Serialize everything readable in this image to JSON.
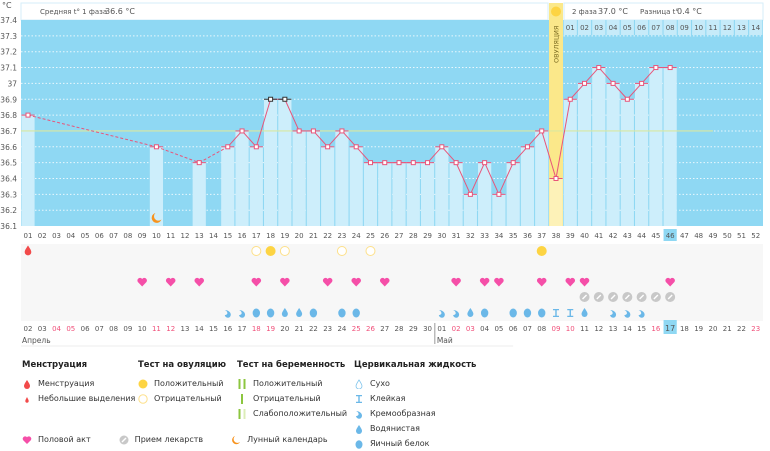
{
  "unit": "°C",
  "header": {
    "phase1_label": "Средняя t° 1 фаза",
    "phase1_value": "36.6 °C",
    "phase2_label": "2 фаза",
    "phase2_value": "37.0 °C",
    "diff_label": "Разница t°",
    "diff_value": "0.4 °C",
    "ovulation_label": "ОВУЛЯЦИЯ"
  },
  "colors": {
    "bg": "#8fd8f3",
    "bar": "#cdeefb",
    "line": "#e8557a",
    "cover": "#d9e8a0",
    "ovulation": "#fbe88a",
    "today": "#8fd8f3",
    "weekend": "#f0507a"
  },
  "y_ticks": [
    "37.4",
    "37.3",
    "37.2",
    "37.1",
    "37",
    "36.9",
    "36.8",
    "36.7",
    "36.6",
    "36.5",
    "36.4",
    "36.3",
    "36.2",
    "36.1"
  ],
  "cover_line": 36.7,
  "ovulation_day": 38,
  "today_day": 46,
  "temps": [
    36.8,
    null,
    null,
    null,
    null,
    null,
    null,
    null,
    null,
    36.6,
    null,
    null,
    36.5,
    null,
    36.6,
    36.7,
    36.6,
    36.9,
    36.9,
    36.7,
    36.7,
    36.6,
    36.7,
    36.6,
    36.5,
    36.5,
    36.5,
    36.5,
    36.5,
    36.6,
    36.5,
    36.3,
    36.5,
    36.3,
    36.5,
    36.6,
    36.7,
    36.4,
    36.9,
    37.0,
    37.1,
    37.0,
    36.9,
    37.0,
    37.1,
    37.1,
    null,
    null,
    null,
    null,
    null,
    null
  ],
  "highlight_points": [
    18,
    19
  ],
  "phase2_days": [
    "01",
    "02",
    "03",
    "04",
    "05",
    "06",
    "07",
    "08",
    "09",
    "10",
    "11",
    "12",
    "13",
    "14"
  ],
  "dates": [
    "02",
    "03",
    "04",
    "05",
    "06",
    "07",
    "08",
    "09",
    "10",
    "11",
    "12",
    "13",
    "14",
    "15",
    "16",
    "17",
    "18",
    "19",
    "20",
    "21",
    "22",
    "23",
    "24",
    "25",
    "26",
    "27",
    "28",
    "29",
    "30",
    "01",
    "02",
    "03",
    "04",
    "05",
    "06",
    "07",
    "08",
    "09",
    "10",
    "11",
    "12",
    "13",
    "14",
    "15",
    "16",
    "17",
    "18",
    "19",
    "20",
    "21",
    "22",
    "23"
  ],
  "weekend_days": [
    3,
    4,
    10,
    11,
    17,
    18,
    24,
    25,
    31,
    32,
    38,
    39,
    45,
    52
  ],
  "months": [
    {
      "label": "Апрель",
      "day": 1
    },
    {
      "label": "Май",
      "day": 30
    }
  ],
  "marks": {
    "menstruation": [
      1
    ],
    "ovulation_positive": [
      18,
      37
    ],
    "ovulation_negative": [
      17,
      19,
      23,
      25
    ],
    "intercourse": [
      9,
      11,
      13,
      17,
      19,
      22,
      24,
      26,
      31,
      33,
      34,
      37,
      39,
      40,
      46
    ],
    "medication": [
      40,
      41,
      42,
      43,
      44,
      45,
      46
    ],
    "moon": [
      10
    ],
    "cervical": {
      "15": "creamy",
      "16": "creamy",
      "17": "eggwhite",
      "18": "eggwhite",
      "19": "watery",
      "20": "watery",
      "21": "eggwhite",
      "23": "eggwhite",
      "24": "eggwhite",
      "30": "creamy",
      "31": "creamy",
      "32": "watery",
      "33": "eggwhite",
      "35": "eggwhite",
      "36": "eggwhite",
      "37": "eggwhite",
      "38": "sticky",
      "39": "sticky",
      "40": "watery",
      "42": "creamy",
      "43": "creamy",
      "44": "creamy"
    }
  },
  "legend": {
    "menstruation": {
      "title": "Менструация",
      "items": [
        "Менструация",
        "Небольшие выделения"
      ]
    },
    "ovulation_test": {
      "title": "Тест на овуляцию",
      "items": [
        "Положительный",
        "Отрицательный"
      ]
    },
    "pregnancy_test": {
      "title": "Тест на беременность",
      "items": [
        "Положительный",
        "Отрицательный",
        "Слабоположительный"
      ]
    },
    "cervical": {
      "title": "Цервикальная жидкость",
      "items": [
        "Сухо",
        "Клейкая",
        "Кремообразная",
        "Водянистая",
        "Яичный белок"
      ]
    },
    "other": [
      "Половой акт",
      "Прием лекарств",
      "Лунный календарь"
    ]
  }
}
